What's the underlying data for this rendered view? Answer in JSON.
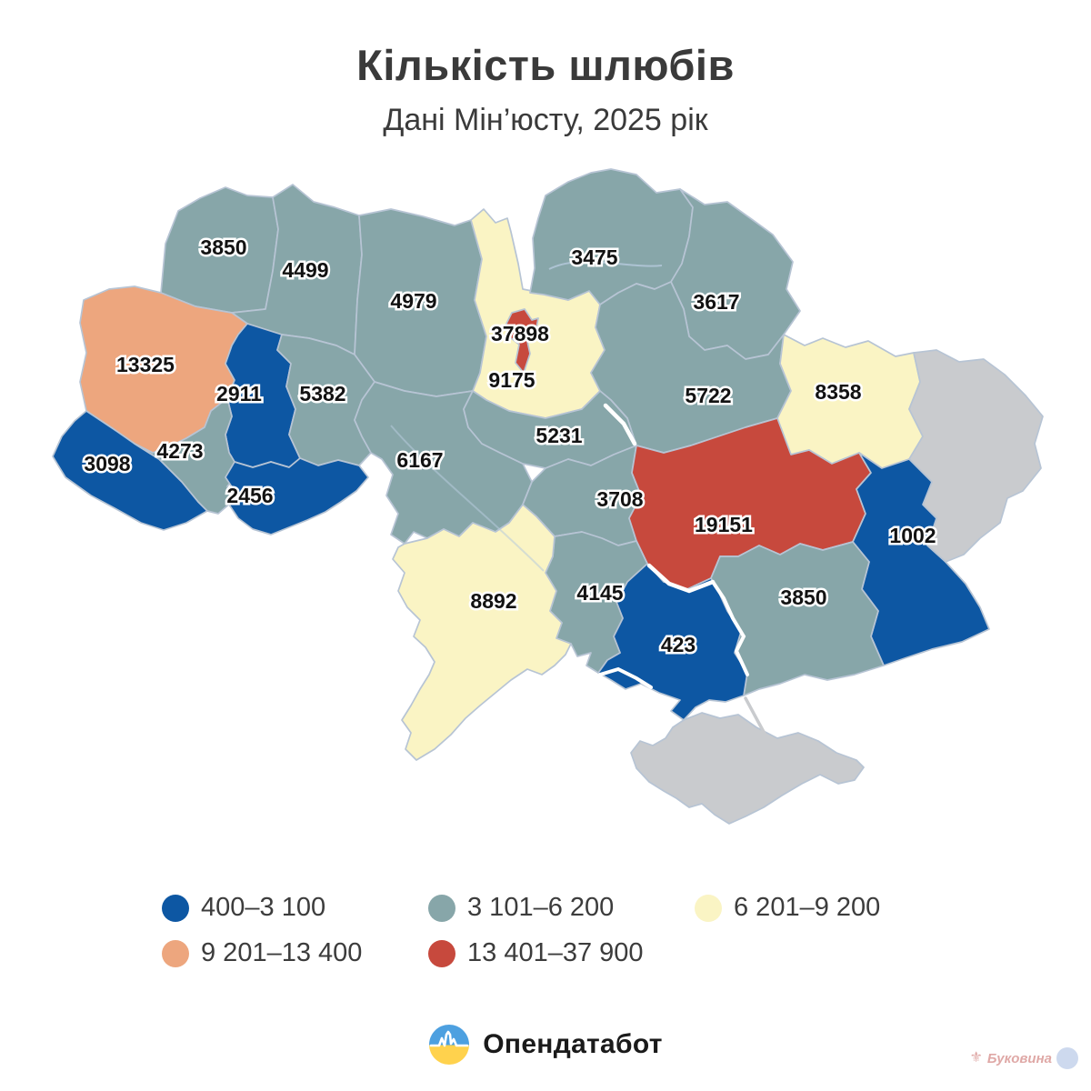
{
  "header": {
    "title": "Кількість шлюбів",
    "subtitle": "Дані Мін’юсту, 2025 рік"
  },
  "palette": {
    "b1": "#0d57a3",
    "b2": "#87a6a9",
    "b3": "#faf4c4",
    "b4": "#eda67e",
    "b5": "#c7493d",
    "nodata": "#c9cbce"
  },
  "legend": {
    "items": [
      {
        "label": "400–3 100",
        "bucket": "b1"
      },
      {
        "label": "3 101–6 200",
        "bucket": "b2"
      },
      {
        "label": "6 201–9 200",
        "bucket": "b3"
      },
      {
        "label": "9 201–13 400",
        "bucket": "b4"
      },
      {
        "label": "13 401–37 900",
        "bucket": "b5"
      }
    ]
  },
  "chart_data": {
    "type": "choropleth",
    "title": "Кількість шлюбів",
    "subtitle": "Дані Мін’юсту, 2025 рік",
    "legend_position": "bottom",
    "regions": [
      {
        "id": "volyn",
        "value": "3850",
        "bucket": "b2"
      },
      {
        "id": "rivne",
        "value": "4499",
        "bucket": "b2"
      },
      {
        "id": "zhytomyr",
        "value": "4979",
        "bucket": "b2"
      },
      {
        "id": "kyiv-oblast",
        "value": "9175",
        "bucket": "b3"
      },
      {
        "id": "chernihiv",
        "value": "3475",
        "bucket": "b2"
      },
      {
        "id": "sumy",
        "value": "3617",
        "bucket": "b2"
      },
      {
        "id": "poltava",
        "value": "5722",
        "bucket": "b2"
      },
      {
        "id": "kharkiv",
        "value": "8358",
        "bucket": "b3"
      },
      {
        "id": "luhansk",
        "value": "",
        "bucket": "nodata"
      },
      {
        "id": "lviv",
        "value": "13325",
        "bucket": "b4"
      },
      {
        "id": "ternopil",
        "value": "2911",
        "bucket": "b1"
      },
      {
        "id": "khmelnytskyi",
        "value": "5382",
        "bucket": "b2"
      },
      {
        "id": "zakarpattia",
        "value": "3098",
        "bucket": "b1"
      },
      {
        "id": "ivano-frankivsk",
        "value": "4273",
        "bucket": "b2"
      },
      {
        "id": "chernivtsi",
        "value": "2456",
        "bucket": "b1"
      },
      {
        "id": "vinnytsia",
        "value": "6167",
        "bucket": "b2"
      },
      {
        "id": "cherkasy",
        "value": "5231",
        "bucket": "b2"
      },
      {
        "id": "kirovohrad",
        "value": "3708",
        "bucket": "b2"
      },
      {
        "id": "dnipro",
        "value": "19151",
        "bucket": "b5"
      },
      {
        "id": "donetsk",
        "value": "1002",
        "bucket": "b1"
      },
      {
        "id": "zaporizhzhia",
        "value": "3850",
        "bucket": "b2"
      },
      {
        "id": "kherson",
        "value": "423",
        "bucket": "b1"
      },
      {
        "id": "mykolaiv",
        "value": "4145",
        "bucket": "b2"
      },
      {
        "id": "odesa",
        "value": "8892",
        "bucket": "b3"
      },
      {
        "id": "crimea",
        "value": "",
        "bucket": "nodata"
      },
      {
        "id": "kyiv-city",
        "value": "37898",
        "bucket": "b5"
      }
    ]
  },
  "footer": {
    "brand": "Опендатабот"
  },
  "watermark": {
    "text": "Буковина"
  }
}
